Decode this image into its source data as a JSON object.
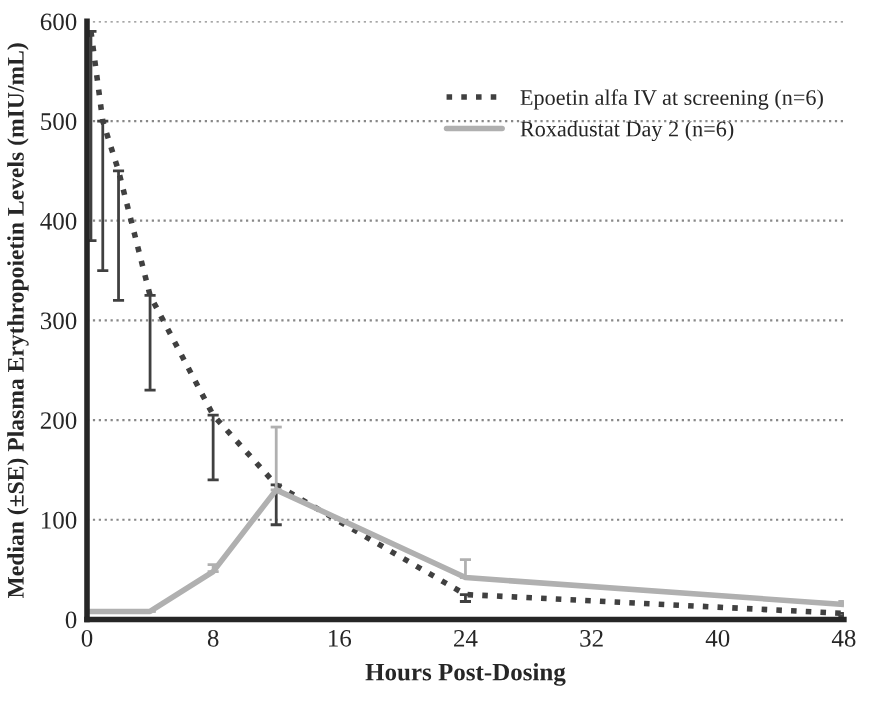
{
  "chart_data": {
    "type": "line",
    "xlabel": "Hours Post-Dosing",
    "ylabel": "Median (±SE) Plasma Erythropoietin Levels (mIU/mL)",
    "series": [
      {
        "name": "Epoetin alfa IV at screening (n=6)",
        "color": "#404040",
        "line_style": "dotted",
        "x": [
          0.25,
          1,
          2,
          4,
          8,
          12,
          24,
          48
        ],
        "values": [
          590,
          500,
          450,
          325,
          205,
          135,
          25,
          6
        ],
        "errors": [
          [
            380,
            590
          ],
          [
            350,
            500
          ],
          [
            320,
            450
          ],
          [
            230,
            325
          ],
          [
            140,
            205
          ],
          [
            95,
            135
          ],
          [
            18,
            25
          ],
          [
            3,
            6
          ]
        ]
      },
      {
        "name": "Roxadustat Day 2 (n=6)",
        "color": "#b0b0b0",
        "line_style": "solid",
        "x": [
          0,
          4,
          8,
          12,
          24,
          48
        ],
        "values": [
          8,
          8,
          48,
          130,
          42,
          15
        ],
        "errors": [
          [
            8,
            8
          ],
          [
            8,
            8
          ],
          [
            48,
            55
          ],
          [
            130,
            193
          ],
          [
            42,
            60
          ],
          [
            15,
            18
          ]
        ]
      }
    ],
    "xlim": [
      0,
      48
    ],
    "xticks": [
      0,
      8,
      16,
      24,
      32,
      40,
      48
    ],
    "ylim": [
      0,
      600
    ],
    "yticks": [
      0,
      100,
      200,
      300,
      400,
      500,
      600
    ],
    "grid": "y",
    "legend": "top right",
    "marker": "none"
  }
}
